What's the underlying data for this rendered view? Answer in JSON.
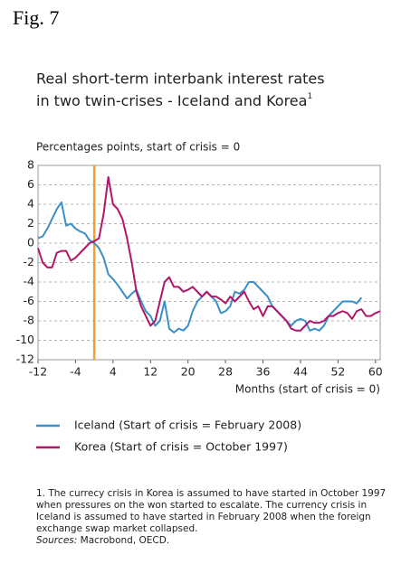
{
  "figure_label": "Fig. 7",
  "chart_data": {
    "type": "line",
    "title": [
      "Real short-term interbank interest rates",
      "in two twin-crises - Iceland and Korea"
    ],
    "title_note_ref": "1",
    "y_label": "Percentages points, start of crisis = 0",
    "x_label": "Months (start of crisis = 0)",
    "x": [
      -12,
      -11,
      -10,
      -9,
      -8,
      -7,
      -6,
      -5,
      -4,
      -3,
      -2,
      -1,
      0,
      1,
      2,
      3,
      4,
      5,
      6,
      7,
      8,
      9,
      10,
      11,
      12,
      13,
      14,
      15,
      16,
      17,
      18,
      19,
      20,
      21,
      22,
      23,
      24,
      25,
      26,
      27,
      28,
      29,
      30,
      31,
      32,
      33,
      34,
      35,
      36,
      37,
      38,
      39,
      40,
      41,
      42,
      43,
      44,
      45,
      46,
      47,
      48,
      49,
      50,
      51,
      52,
      53,
      54,
      55,
      56,
      57,
      58,
      59,
      60,
      61
    ],
    "series": [
      {
        "name": "Iceland (Start of crisis = February 2008)",
        "color": "#3a8fc8",
        "values": [
          0.5,
          0.7,
          1.5,
          2.5,
          3.5,
          4.2,
          1.8,
          2,
          1.5,
          1.2,
          1,
          0.3,
          0,
          -0.5,
          -1.5,
          -3.2,
          -3.7,
          -4.3,
          -5,
          -5.7,
          -5.2,
          -4.8,
          -6,
          -7,
          -7.5,
          -8.5,
          -8,
          -6,
          -8.8,
          -9.2,
          -8.8,
          -9,
          -8.5,
          -7,
          -6,
          -5.5,
          -5,
          -5.5,
          -6,
          -7.2,
          -7,
          -6.5,
          -5,
          -5.2,
          -4.8,
          -4,
          -4,
          -4.5,
          -5,
          -5.5,
          -6.5,
          -7,
          -7.5,
          -8,
          -8.5,
          -8,
          -7.8,
          -8,
          -9,
          -8.8,
          -9,
          -8.5,
          -7.5,
          -7,
          -6.5,
          -6,
          -6,
          -6,
          -6.2,
          -5.6,
          null,
          null,
          null,
          null
        ]
      },
      {
        "name": "Korea (Start of crisis = October 1997)",
        "color": "#b0176a",
        "values": [
          -0.5,
          -2,
          -2.5,
          -2.5,
          -1,
          -0.8,
          -0.8,
          -1.8,
          -1.5,
          -1,
          -0.5,
          0,
          0.2,
          0.5,
          3,
          6.8,
          4,
          3.5,
          2.5,
          0.5,
          -2,
          -5,
          -6.5,
          -7.5,
          -8.5,
          -8,
          -6,
          -4,
          -3.5,
          -4.5,
          -4.5,
          -5,
          -4.8,
          -4.5,
          -5,
          -5.5,
          -5,
          -5.5,
          -5.5,
          -5.8,
          -6.2,
          -5.5,
          -6,
          -5.5,
          -5,
          -6,
          -6.8,
          -6.5,
          -7.5,
          -6.5,
          -6.5,
          -7,
          -7.5,
          -8,
          -8.8,
          -9,
          -9,
          -8.5,
          -8,
          -8.2,
          -8.2,
          -8,
          -7.5,
          -7.5,
          -7.2,
          -7,
          -7.2,
          -7.8,
          -7,
          -6.8,
          -7.5,
          -7.5,
          -7.2,
          -7
        ]
      }
    ],
    "vline": 0,
    "vline_color": "#f0a030",
    "xlim": [
      -12,
      61
    ],
    "xticks": [
      -12,
      -4,
      4,
      12,
      20,
      28,
      36,
      44,
      52,
      60
    ],
    "ylim": [
      -12,
      8
    ],
    "yticks": [
      -12,
      -10,
      -8,
      -6,
      -4,
      -2,
      0,
      2,
      4,
      6,
      8
    ],
    "grid": true
  },
  "note": {
    "text": "1. The currecy crisis in Korea is assumed to have started in October 1997 when pressures on the won started to escalate. The currency crisis in Iceland is assumed to have started in February 2008 when the foreign exchange swap market collapsed.",
    "sources_label": "Sources:",
    "sources": "Macrobond, OECD."
  }
}
